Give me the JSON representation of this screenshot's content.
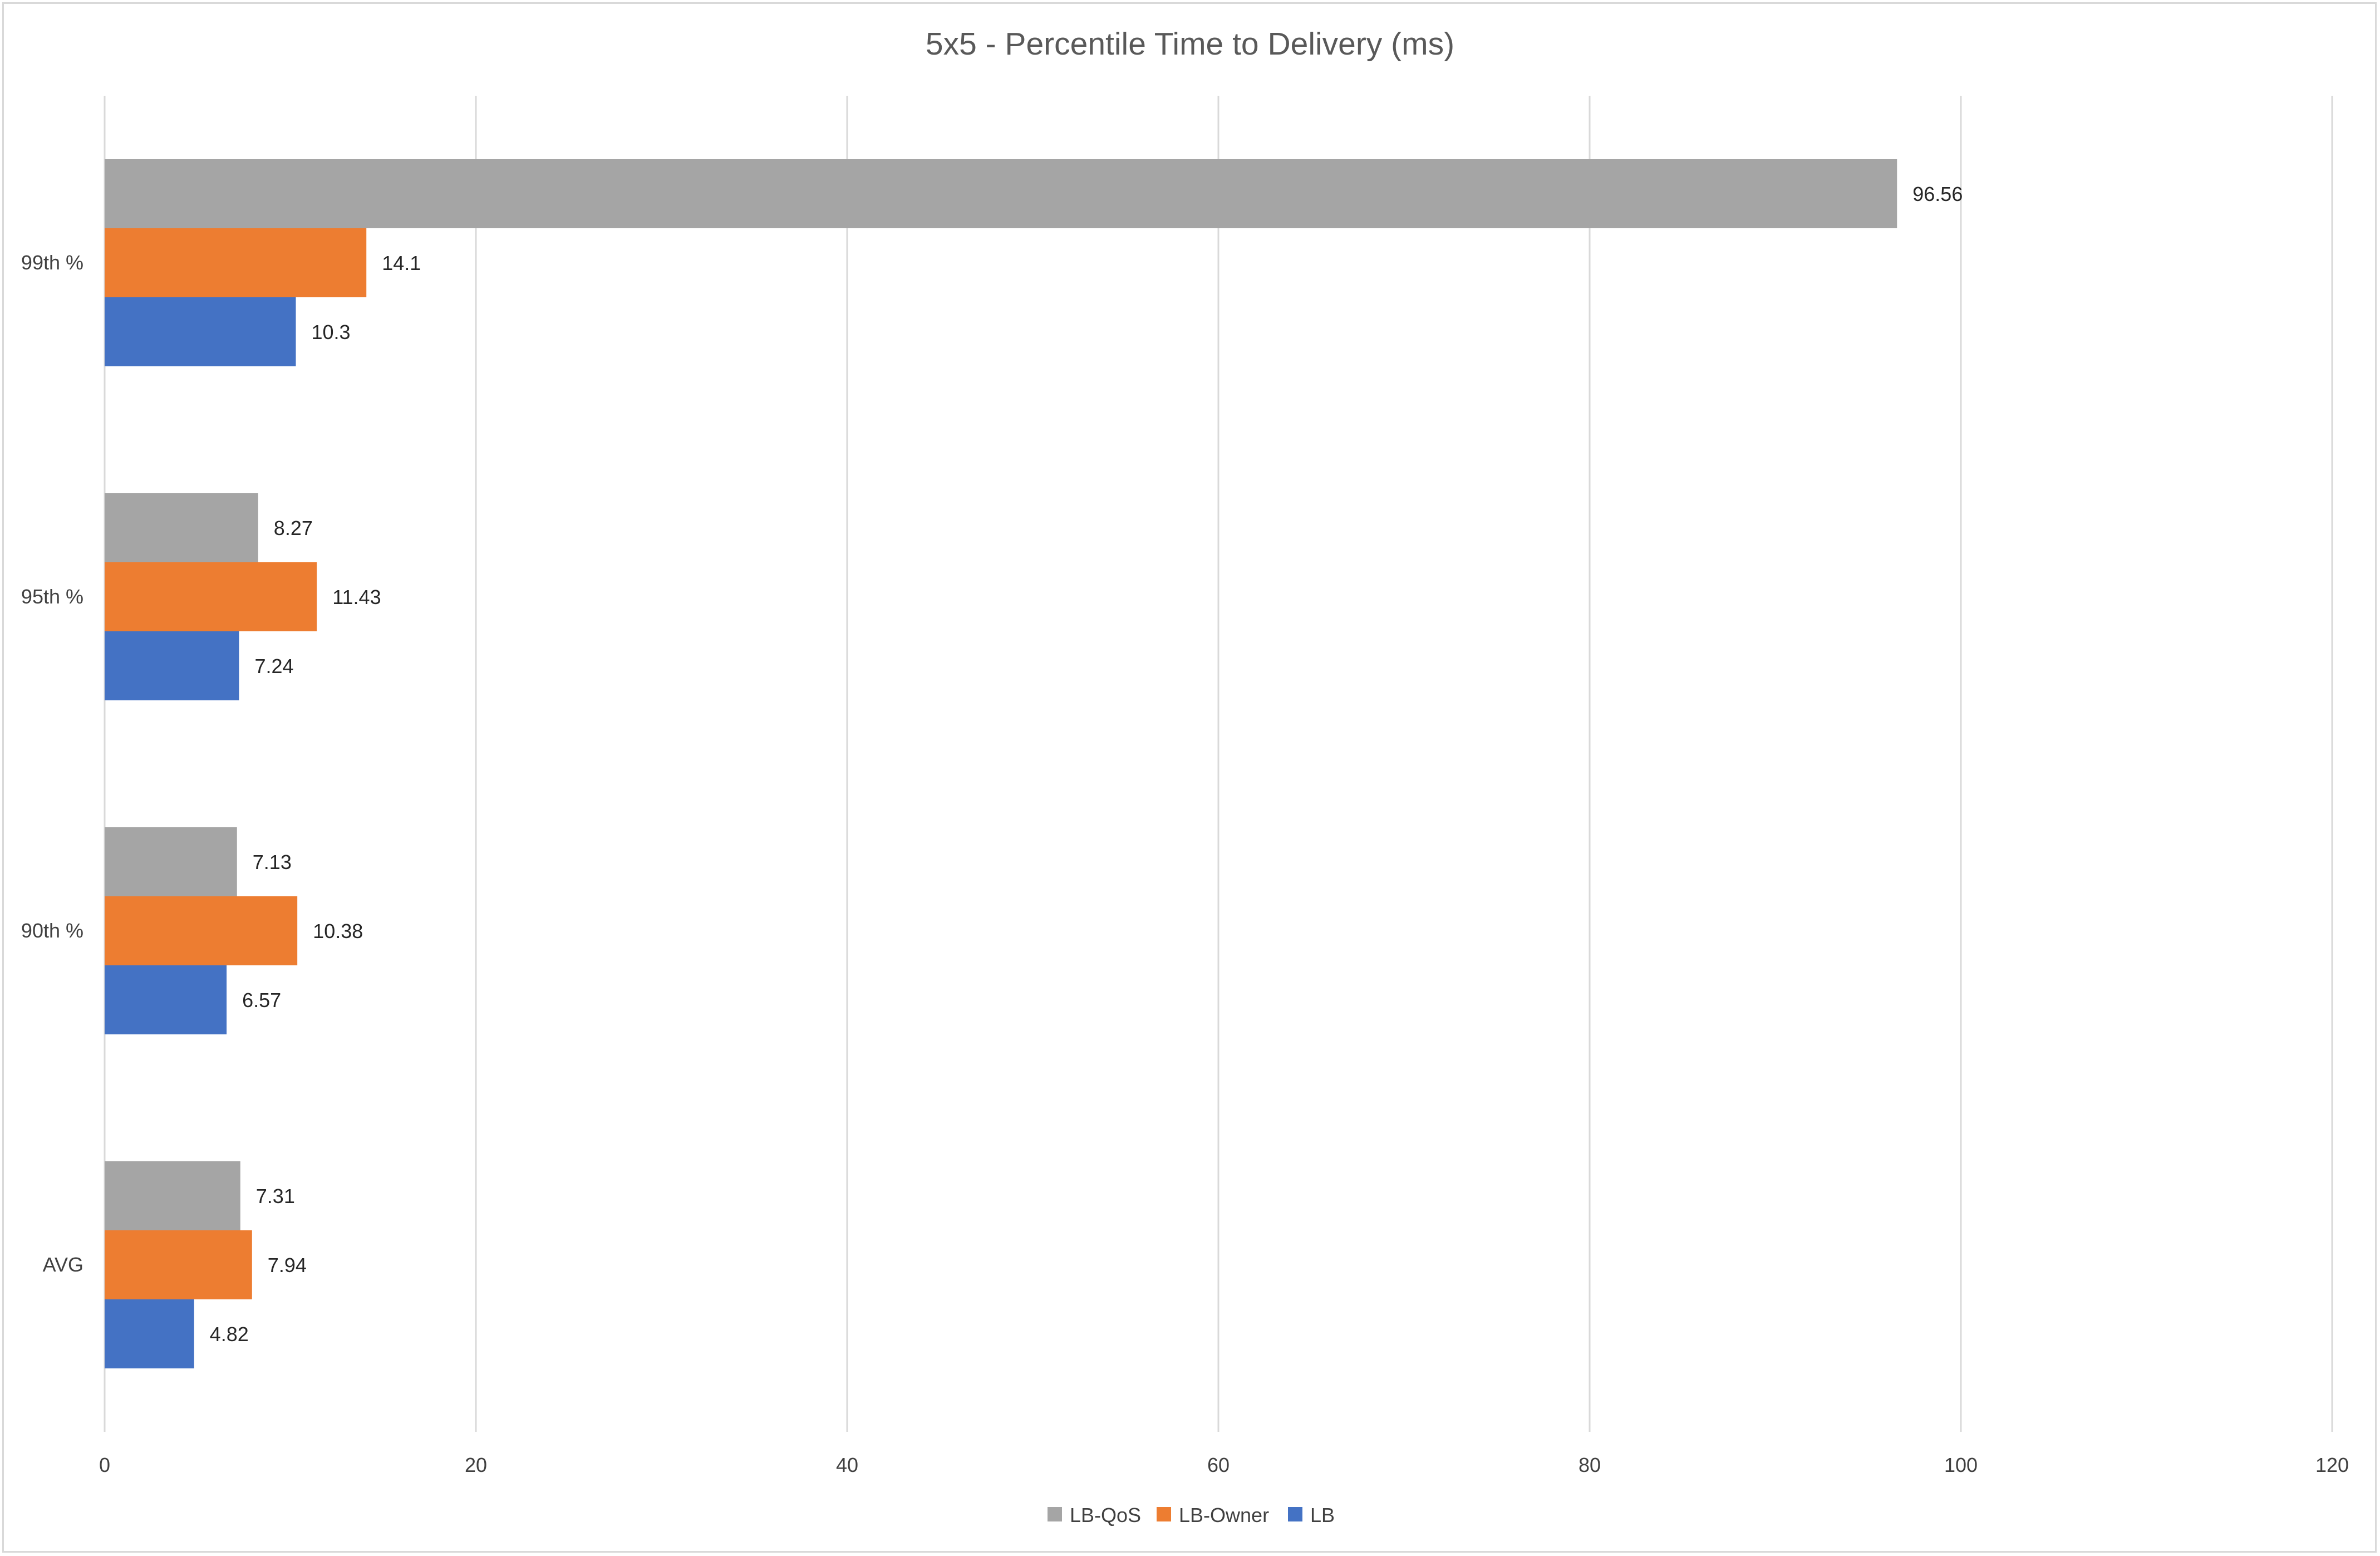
{
  "chart_data": {
    "type": "bar",
    "orientation": "horizontal",
    "title": "5x5 - Percentile Time to Delivery (ms)",
    "xlabel": "",
    "ylabel": "",
    "categories": [
      "99th %",
      "95th %",
      "90th %",
      "AVG"
    ],
    "series": [
      {
        "name": "LB-QoS",
        "color": "#A5A5A5",
        "values": [
          96.56,
          8.27,
          7.13,
          7.31
        ]
      },
      {
        "name": "LB-Owner",
        "color": "#ED7D31",
        "values": [
          14.1,
          11.43,
          10.38,
          7.94
        ]
      },
      {
        "name": "LB",
        "color": "#4472C4",
        "values": [
          10.3,
          7.24,
          6.57,
          4.82
        ]
      }
    ],
    "xlim": [
      0,
      120
    ],
    "xticks": [
      0,
      20,
      40,
      60,
      80,
      100,
      120
    ],
    "grid": "vertical",
    "legend_position": "bottom",
    "data_labels": true
  }
}
